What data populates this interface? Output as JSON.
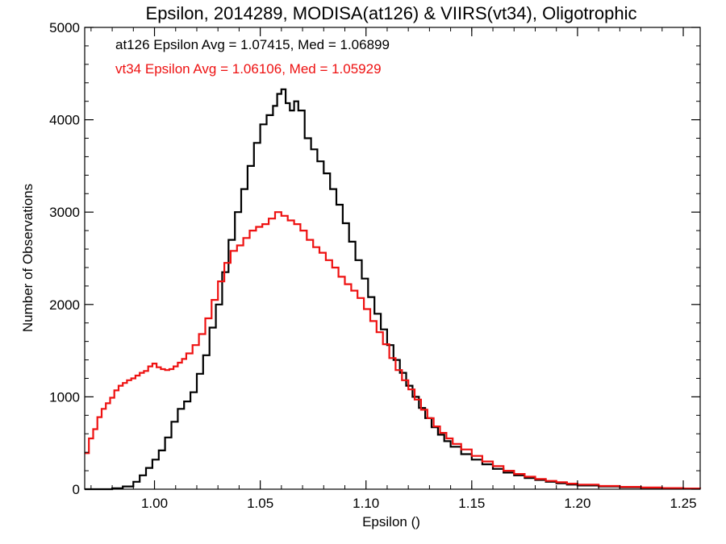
{
  "chart_data": {
    "type": "line",
    "title": "Epsilon, 2014289, MODISA(at126) & VIIRS(vt34), Oligotrophic",
    "xlabel": "Epsilon ()",
    "ylabel": "Number of Observations",
    "xlim": [
      0.967,
      1.258
    ],
    "ylim": [
      0,
      5000
    ],
    "x_ticks": [
      1.0,
      1.05,
      1.1,
      1.15,
      1.2,
      1.25
    ],
    "x_tick_labels": [
      "1.00",
      "1.05",
      "1.10",
      "1.15",
      "1.20",
      "1.25"
    ],
    "y_ticks": [
      0,
      1000,
      2000,
      3000,
      4000,
      5000
    ],
    "y_tick_labels": [
      "0",
      "1000",
      "2000",
      "3000",
      "4000",
      "5000"
    ],
    "grid": false,
    "annotations": [
      {
        "text": "at126 Epsilon Avg = 1.07415, Med = 1.06899",
        "color": "#000000"
      },
      {
        "text": "vt34 Epsilon Avg = 1.06106, Med = 1.05929",
        "color": "#ee1111"
      }
    ],
    "series": [
      {
        "color": "#000000",
        "step": true,
        "points": [
          [
            0.967,
            0
          ],
          [
            0.98,
            10
          ],
          [
            0.985,
            30
          ],
          [
            0.99,
            80
          ],
          [
            0.993,
            150
          ],
          [
            0.996,
            230
          ],
          [
            0.999,
            320
          ],
          [
            1.002,
            420
          ],
          [
            1.005,
            560
          ],
          [
            1.008,
            730
          ],
          [
            1.011,
            870
          ],
          [
            1.014,
            950
          ],
          [
            1.017,
            1050
          ],
          [
            1.02,
            1250
          ],
          [
            1.023,
            1450
          ],
          [
            1.026,
            1750
          ],
          [
            1.029,
            2000
          ],
          [
            1.032,
            2350
          ],
          [
            1.035,
            2700
          ],
          [
            1.038,
            3000
          ],
          [
            1.041,
            3250
          ],
          [
            1.044,
            3500
          ],
          [
            1.047,
            3750
          ],
          [
            1.05,
            3950
          ],
          [
            1.053,
            4050
          ],
          [
            1.056,
            4150
          ],
          [
            1.058,
            4280
          ],
          [
            1.06,
            4330
          ],
          [
            1.062,
            4180
          ],
          [
            1.064,
            4100
          ],
          [
            1.066,
            4200
          ],
          [
            1.068,
            4100
          ],
          [
            1.071,
            3800
          ],
          [
            1.074,
            3680
          ],
          [
            1.077,
            3550
          ],
          [
            1.08,
            3420
          ],
          [
            1.083,
            3250
          ],
          [
            1.086,
            3080
          ],
          [
            1.089,
            2880
          ],
          [
            1.092,
            2680
          ],
          [
            1.095,
            2480
          ],
          [
            1.098,
            2280
          ],
          [
            1.101,
            2080
          ],
          [
            1.104,
            1900
          ],
          [
            1.107,
            1730
          ],
          [
            1.11,
            1560
          ],
          [
            1.113,
            1400
          ],
          [
            1.116,
            1260
          ],
          [
            1.119,
            1120
          ],
          [
            1.122,
            1000
          ],
          [
            1.125,
            880
          ],
          [
            1.128,
            770
          ],
          [
            1.131,
            670
          ],
          [
            1.134,
            590
          ],
          [
            1.137,
            520
          ],
          [
            1.14,
            460
          ],
          [
            1.145,
            380
          ],
          [
            1.15,
            320
          ],
          [
            1.155,
            270
          ],
          [
            1.16,
            220
          ],
          [
            1.165,
            180
          ],
          [
            1.17,
            150
          ],
          [
            1.175,
            120
          ],
          [
            1.18,
            100
          ],
          [
            1.185,
            80
          ],
          [
            1.19,
            65
          ],
          [
            1.195,
            50
          ],
          [
            1.2,
            40
          ],
          [
            1.21,
            30
          ],
          [
            1.22,
            20
          ],
          [
            1.23,
            15
          ],
          [
            1.24,
            10
          ],
          [
            1.25,
            5
          ],
          [
            1.258,
            5
          ]
        ]
      },
      {
        "color": "#ee1111",
        "step": true,
        "points": [
          [
            0.967,
            390
          ],
          [
            0.969,
            550
          ],
          [
            0.971,
            650
          ],
          [
            0.973,
            780
          ],
          [
            0.975,
            870
          ],
          [
            0.977,
            930
          ],
          [
            0.979,
            990
          ],
          [
            0.981,
            1070
          ],
          [
            0.983,
            1120
          ],
          [
            0.985,
            1150
          ],
          [
            0.987,
            1180
          ],
          [
            0.989,
            1200
          ],
          [
            0.991,
            1230
          ],
          [
            0.993,
            1260
          ],
          [
            0.995,
            1280
          ],
          [
            0.997,
            1330
          ],
          [
            0.999,
            1360
          ],
          [
            1.001,
            1320
          ],
          [
            1.003,
            1300
          ],
          [
            1.005,
            1290
          ],
          [
            1.007,
            1300
          ],
          [
            1.009,
            1330
          ],
          [
            1.011,
            1370
          ],
          [
            1.013,
            1410
          ],
          [
            1.015,
            1470
          ],
          [
            1.018,
            1560
          ],
          [
            1.021,
            1680
          ],
          [
            1.024,
            1850
          ],
          [
            1.027,
            2050
          ],
          [
            1.03,
            2250
          ],
          [
            1.033,
            2450
          ],
          [
            1.036,
            2580
          ],
          [
            1.039,
            2640
          ],
          [
            1.042,
            2720
          ],
          [
            1.045,
            2800
          ],
          [
            1.048,
            2840
          ],
          [
            1.051,
            2870
          ],
          [
            1.054,
            2930
          ],
          [
            1.057,
            3000
          ],
          [
            1.06,
            2960
          ],
          [
            1.063,
            2910
          ],
          [
            1.066,
            2870
          ],
          [
            1.069,
            2800
          ],
          [
            1.072,
            2700
          ],
          [
            1.075,
            2620
          ],
          [
            1.078,
            2560
          ],
          [
            1.081,
            2480
          ],
          [
            1.084,
            2400
          ],
          [
            1.087,
            2300
          ],
          [
            1.09,
            2220
          ],
          [
            1.093,
            2150
          ],
          [
            1.096,
            2070
          ],
          [
            1.099,
            1950
          ],
          [
            1.102,
            1820
          ],
          [
            1.105,
            1700
          ],
          [
            1.108,
            1570
          ],
          [
            1.111,
            1420
          ],
          [
            1.114,
            1290
          ],
          [
            1.117,
            1180
          ],
          [
            1.12,
            1080
          ],
          [
            1.123,
            970
          ],
          [
            1.126,
            860
          ],
          [
            1.129,
            770
          ],
          [
            1.132,
            680
          ],
          [
            1.135,
            610
          ],
          [
            1.138,
            550
          ],
          [
            1.141,
            490
          ],
          [
            1.145,
            430
          ],
          [
            1.15,
            360
          ],
          [
            1.155,
            300
          ],
          [
            1.16,
            250
          ],
          [
            1.165,
            200
          ],
          [
            1.17,
            165
          ],
          [
            1.175,
            135
          ],
          [
            1.18,
            110
          ],
          [
            1.185,
            90
          ],
          [
            1.19,
            75
          ],
          [
            1.195,
            60
          ],
          [
            1.2,
            50
          ],
          [
            1.21,
            35
          ],
          [
            1.22,
            25
          ],
          [
            1.23,
            18
          ],
          [
            1.24,
            12
          ],
          [
            1.25,
            8
          ],
          [
            1.258,
            6
          ]
        ]
      }
    ]
  }
}
